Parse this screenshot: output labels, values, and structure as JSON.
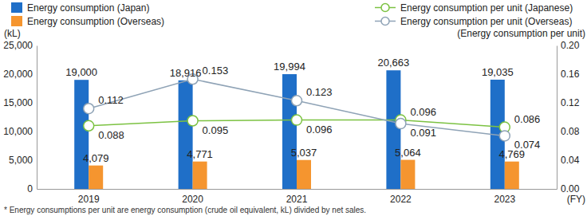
{
  "chart_data": {
    "type": "bar",
    "categories": [
      "2019",
      "2020",
      "2021",
      "2022",
      "2023"
    ],
    "x_label": "(FY)",
    "y_label": "(kL)",
    "y2_label": "(Energy consumption per unit)",
    "annotations": [
      "* Energy consumptions per unit are energy consumption (crude oil equivalent, kL) divided by net sales."
    ],
    "series": [
      {
        "name": "Energy consumption (Japan)",
        "type": "bar",
        "color": "#1f6fc8",
        "values": [
          19000,
          18916,
          19994,
          20663,
          19035
        ],
        "value_labels": [
          "19,000",
          "18,916",
          "19,994",
          "20,663",
          "19,035"
        ]
      },
      {
        "name": "Energy consumption (Overseas)",
        "type": "bar",
        "color": "#f5952f",
        "values": [
          4079,
          4771,
          5037,
          5064,
          4769
        ],
        "value_labels": [
          "4,079",
          "4,771",
          "5,037",
          "5,064",
          "4,769"
        ]
      },
      {
        "name": "Energy consumption per unit (Japanese)",
        "type": "line",
        "axis": "y2",
        "color": "#7cc242",
        "marker": "circle",
        "values": [
          0.088,
          0.095,
          0.096,
          0.096,
          0.086
        ]
      },
      {
        "name": "Energy consumption per unit (Overseas)",
        "type": "line",
        "axis": "y2",
        "color": "#8fa3b6",
        "marker": "circle",
        "values": [
          0.112,
          0.153,
          0.123,
          0.091,
          0.074
        ]
      }
    ],
    "ylim": [
      0,
      25000
    ],
    "yticks": [
      0,
      {
        "value": 5000,
        "label": "5,000"
      },
      {
        "value": 10000,
        "label": "10,000"
      },
      {
        "value": 15000,
        "label": "15,000"
      },
      {
        "value": 20000,
        "label": "20,000"
      },
      {
        "value": 25000,
        "label": "25,000"
      }
    ],
    "y2lim": [
      0,
      0.2
    ],
    "y2ticks": [
      {
        "value": 0,
        "label": "0.00"
      },
      0.04,
      0.08,
      0.12,
      0.16,
      {
        "value": 0.2,
        "label": "0.20"
      }
    ],
    "grid": false,
    "legend": "top",
    "data_labels": true
  }
}
